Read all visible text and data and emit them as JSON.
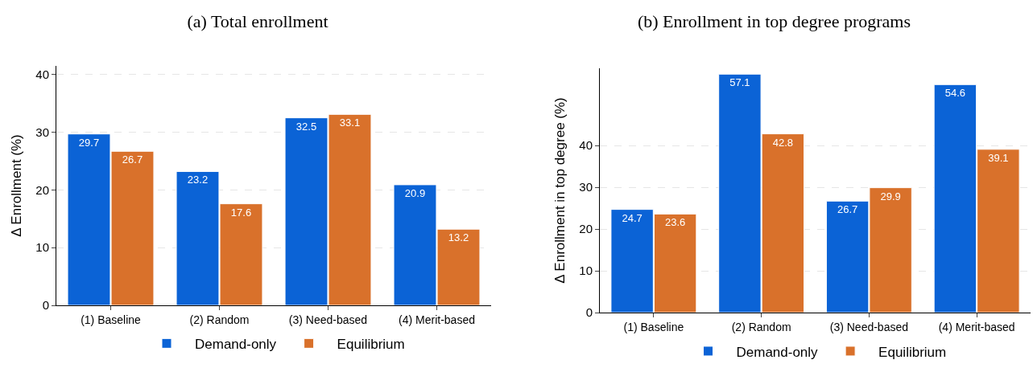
{
  "chart_data": [
    {
      "type": "bar",
      "title": "(a) Total enrollment",
      "ylabel": "Δ Enrollment (%)",
      "categories": [
        "(1) Baseline",
        "(2) Random",
        "(3) Need-based",
        "(4) Merit-based"
      ],
      "series": [
        {
          "name": "Demand-only",
          "color": "#0b63d6",
          "values": [
            29.7,
            23.2,
            32.5,
            20.9
          ]
        },
        {
          "name": "Equilibrium",
          "color": "#d9712b",
          "values": [
            26.7,
            17.6,
            33.1,
            13.2
          ]
        }
      ],
      "ylim": [
        0,
        41.5
      ],
      "yticks": [
        0,
        10,
        20,
        30,
        40
      ],
      "grid": "y",
      "legend": "bottom",
      "data_labels": true
    },
    {
      "type": "bar",
      "title": "(b) Enrollment in top degree programs",
      "ylabel": "Δ Enrollment in top degree (%)",
      "categories": [
        "(1) Baseline",
        "(2) Random",
        "(3) Need-based",
        "(4) Merit-based"
      ],
      "series": [
        {
          "name": "Demand-only",
          "color": "#0b63d6",
          "values": [
            24.7,
            57.1,
            26.7,
            54.6
          ]
        },
        {
          "name": "Equilibrium",
          "color": "#d9712b",
          "values": [
            23.6,
            42.8,
            29.9,
            39.1
          ]
        }
      ],
      "ylim": [
        0,
        58.5
      ],
      "yticks": [
        0,
        10,
        20,
        30,
        40
      ],
      "grid": "y",
      "legend": "bottom",
      "data_labels": true
    }
  ]
}
